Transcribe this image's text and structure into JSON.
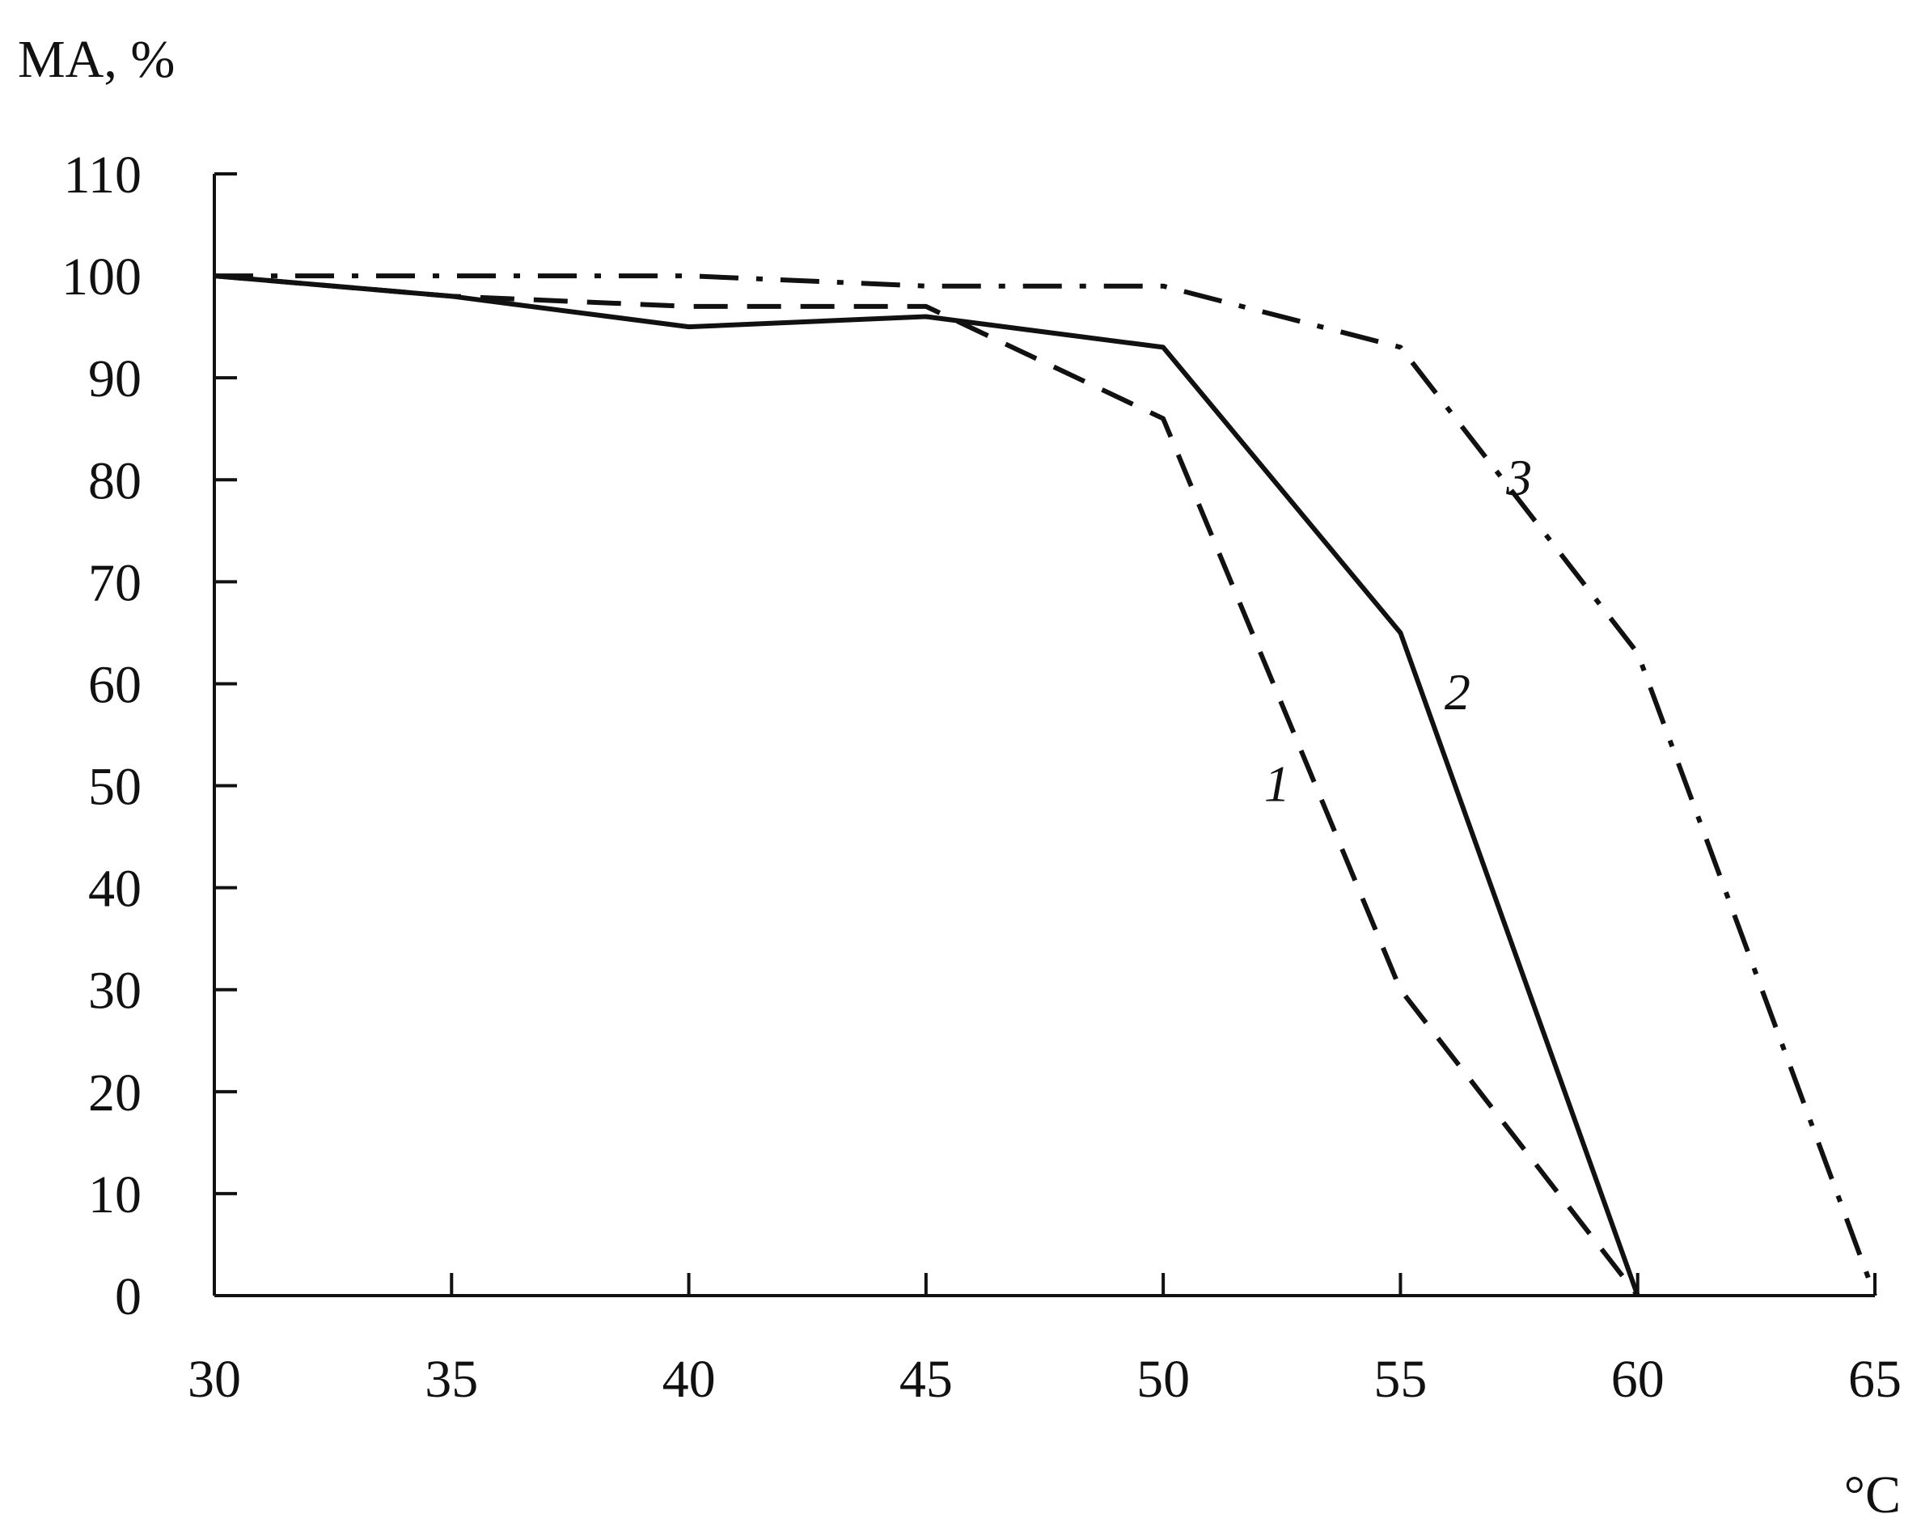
{
  "chart_data": {
    "type": "line",
    "ylabel": "MA, %",
    "xlabel": "°C",
    "xlim": [
      30,
      65
    ],
    "ylim": [
      0,
      110
    ],
    "x_ticks": [
      "30",
      "35",
      "40",
      "45",
      "50",
      "55",
      "60",
      "65"
    ],
    "y_ticks": [
      "0",
      "10",
      "20",
      "30",
      "40",
      "50",
      "60",
      "70",
      "80",
      "90",
      "100",
      "110"
    ],
    "grid": false,
    "legend": "none",
    "series": [
      {
        "name": "1",
        "style": "dashed",
        "x": [
          30,
          35,
          40,
          45,
          50,
          55,
          60
        ],
        "y": [
          100,
          98,
          97,
          97,
          86,
          30,
          0
        ]
      },
      {
        "name": "2",
        "style": "solid",
        "x": [
          30,
          35,
          40,
          45,
          50,
          55,
          60
        ],
        "y": [
          100,
          98,
          95,
          96,
          93,
          65,
          0
        ]
      },
      {
        "name": "3",
        "style": "dash-dot",
        "x": [
          30,
          35,
          40,
          45,
          50,
          55,
          60,
          65
        ],
        "y": [
          100,
          100,
          100,
          99,
          99,
          93,
          63,
          0
        ]
      }
    ]
  }
}
